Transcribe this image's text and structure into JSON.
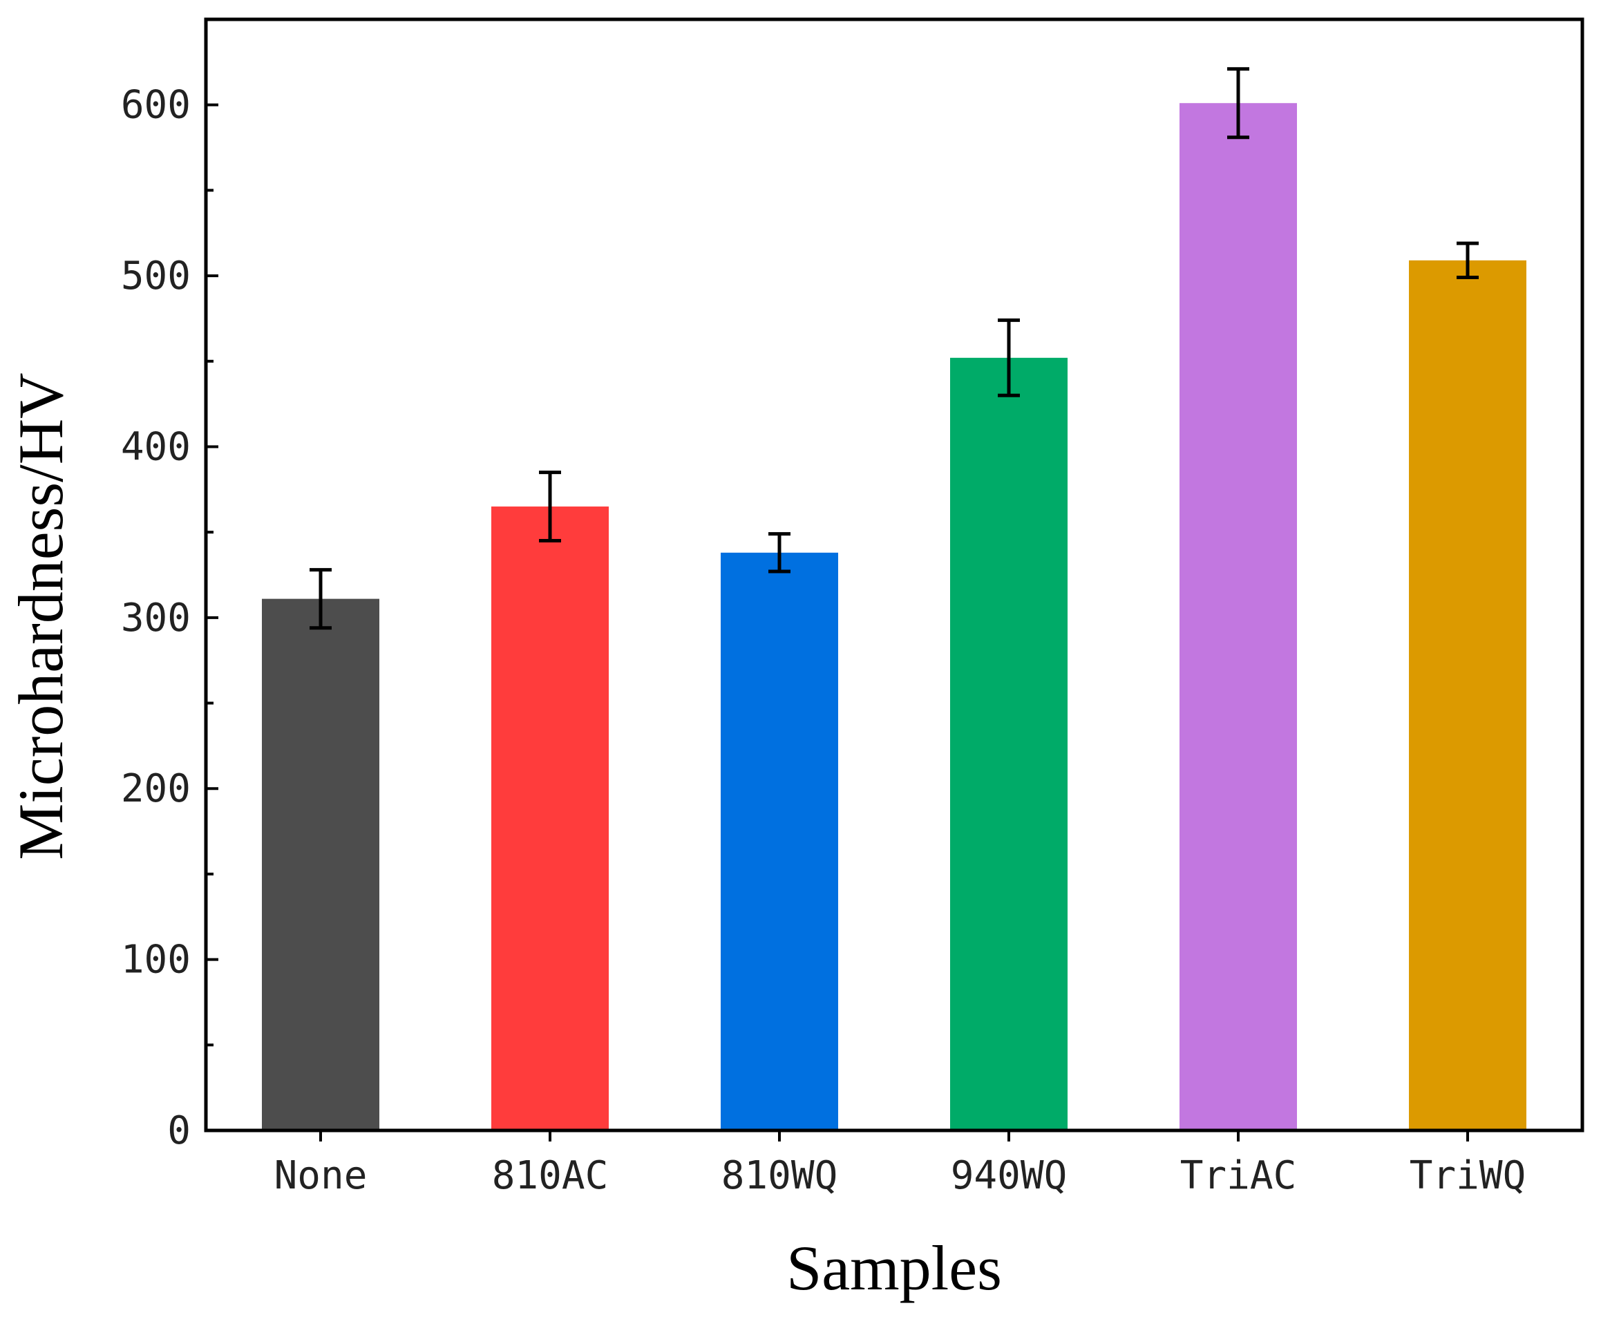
{
  "chart_data": {
    "type": "bar",
    "title": "",
    "xlabel": "Samples",
    "ylabel": "Microhardness/HV",
    "categories": [
      "None",
      "810AC",
      "810WQ",
      "940WQ",
      "TriAC",
      "TriWQ"
    ],
    "values": [
      311,
      365,
      338,
      452,
      601,
      509
    ],
    "errors": [
      17,
      20,
      11,
      22,
      20,
      10
    ],
    "colors": [
      "#4d4d4d",
      "#ff3c3c",
      "#0070e0",
      "#00ab68",
      "#c277e0",
      "#dc9a00"
    ],
    "ylim": [
      0,
      650
    ],
    "yticks": [
      0,
      100,
      200,
      300,
      400,
      500,
      600
    ],
    "yticks_minor": [
      50,
      150,
      250,
      350,
      450,
      550
    ],
    "ytick_labels": [
      "0",
      "100",
      "200",
      "300",
      "400",
      "500",
      "600"
    ],
    "grid": false,
    "legend": "none"
  }
}
